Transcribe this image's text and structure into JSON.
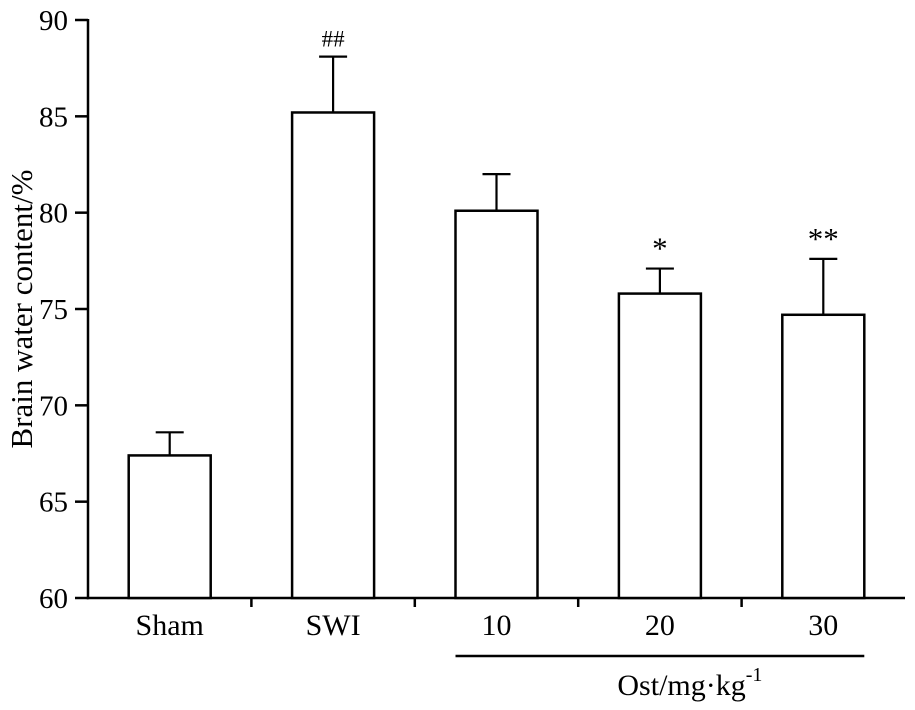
{
  "chart_data": {
    "type": "bar",
    "title": "",
    "xlabel": "",
    "ylabel": "Brain water content/%",
    "categories": [
      "Sham",
      "SWI",
      "10",
      "20",
      "30"
    ],
    "values": [
      67.4,
      85.2,
      80.1,
      75.8,
      74.7
    ],
    "errors": [
      1.2,
      2.9,
      1.9,
      1.3,
      2.9
    ],
    "annotations": [
      "",
      "##",
      "",
      "*",
      "**"
    ],
    "ylim": [
      60,
      90
    ],
    "yticks": [
      60,
      65,
      70,
      75,
      80,
      85,
      90
    ],
    "grid": "off",
    "legend": "none",
    "group_label": "Ost/mg·kg",
    "group_label_superscript": "-1",
    "group_member_indices": [
      2,
      3,
      4
    ],
    "bar_fill_color": "#ffffff",
    "bar_border_color": "#000000",
    "axis_color": "#000000"
  }
}
